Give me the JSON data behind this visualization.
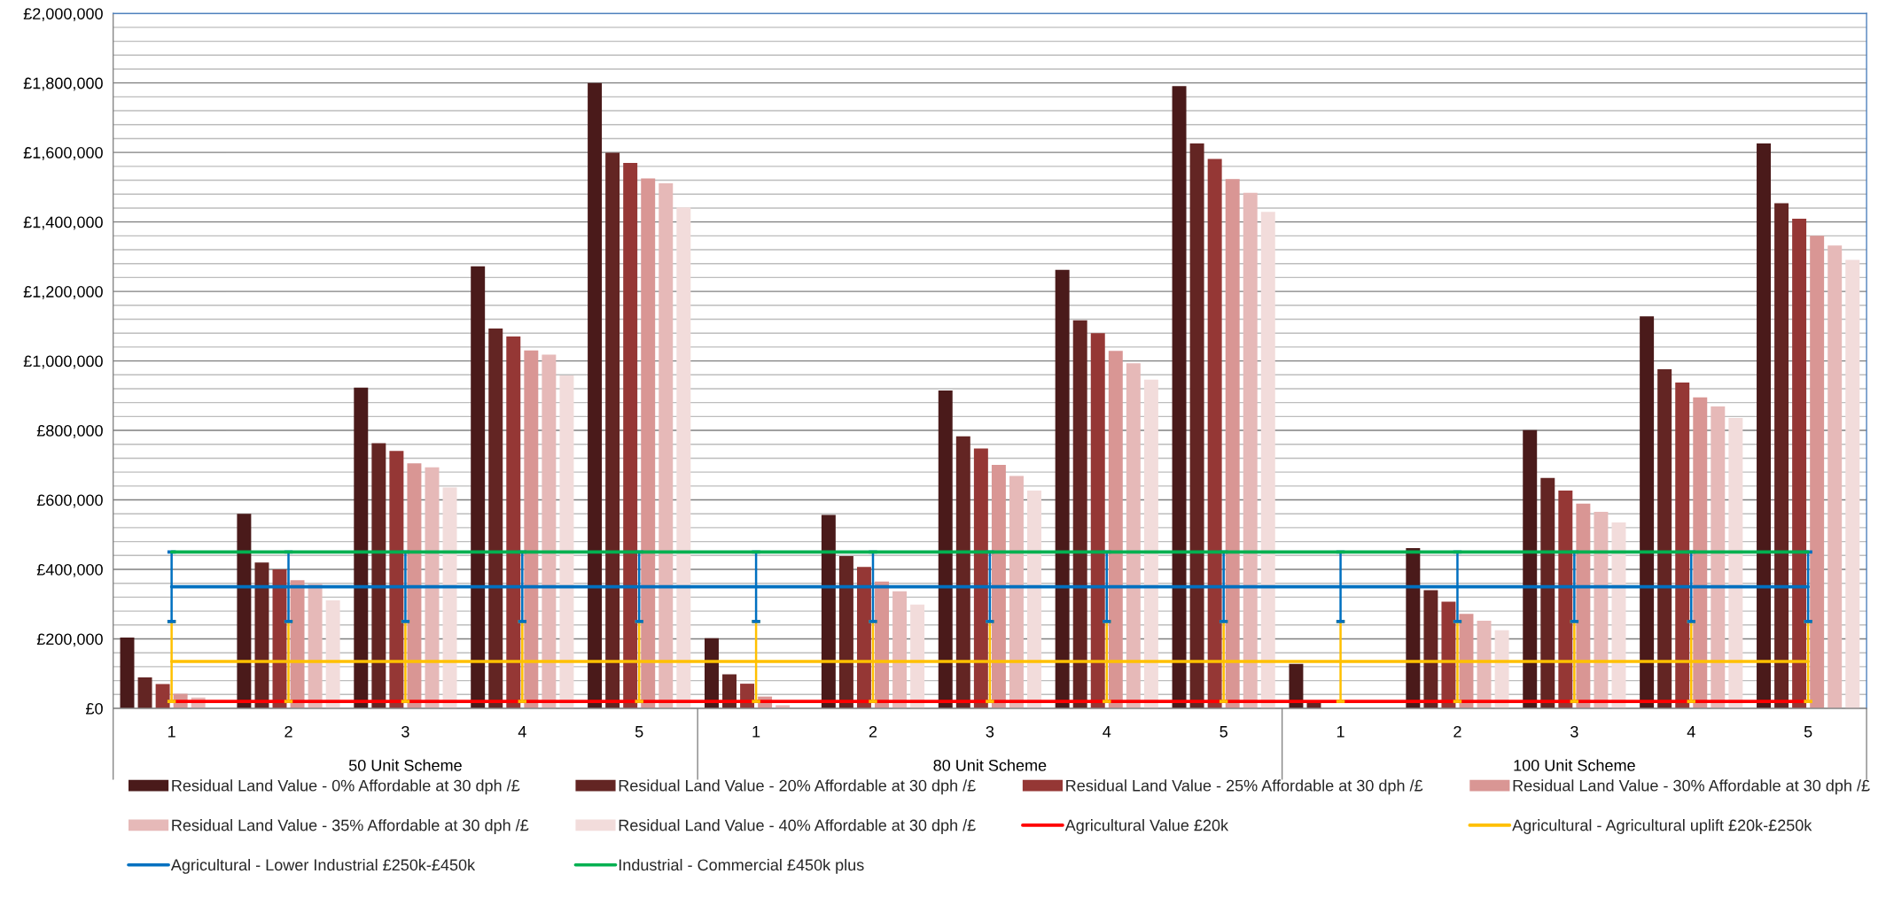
{
  "chart_data": {
    "type": "bar",
    "categories": [
      "1",
      "2",
      "3",
      "4",
      "5",
      "1",
      "2",
      "3",
      "4",
      "5",
      "1",
      "2",
      "3",
      "4",
      "5"
    ],
    "annotations": [
      "50 Unit Scheme",
      "80 Unit Scheme",
      "100 Unit Scheme"
    ],
    "series": [
      {
        "name": "Residual Land Value - 0% Affordable at 30 dph /£",
        "color": "#4a1a1a",
        "values": [
          204000,
          560000,
          923000,
          1272000,
          1800000,
          202000,
          557000,
          915000,
          1262000,
          1791000,
          128000,
          461000,
          801000,
          1128000,
          1626000
        ]
      },
      {
        "name": "Residual Land Value - 20% Affordable at 30 dph /£",
        "color": "#632523",
        "values": [
          89000,
          420000,
          763000,
          1093000,
          1599000,
          98000,
          438000,
          783000,
          1117000,
          1626000,
          16000,
          340000,
          663000,
          976000,
          1454000
        ]
      },
      {
        "name": "Residual Land Value - 25% Affordable at 30 dph /£",
        "color": "#953735",
        "values": [
          70000,
          400000,
          741000,
          1070000,
          1570000,
          71000,
          407000,
          748000,
          1080000,
          1581000,
          null,
          307000,
          627000,
          938000,
          1409000
        ]
      },
      {
        "name": "Residual Land Value - 30% Affordable at 30 dph /£",
        "color": "#d99694",
        "values": [
          42000,
          369000,
          705000,
          1030000,
          1525000,
          34000,
          365000,
          701000,
          1029000,
          1523000,
          null,
          272000,
          589000,
          895000,
          1360000
        ]
      },
      {
        "name": "Residual Land Value - 35% Affordable at 30 dph /£",
        "color": "#e6b9b8",
        "values": [
          31000,
          358000,
          694000,
          1018000,
          1511000,
          9000,
          337000,
          669000,
          993000,
          1484000,
          null,
          252000,
          566000,
          869000,
          1332000
        ]
      },
      {
        "name": "Residual Land Value - 40% Affordable at 30 dph /£",
        "color": "#f2dcdb",
        "values": [
          null,
          311000,
          636000,
          958000,
          1442000,
          null,
          299000,
          627000,
          946000,
          1429000,
          null,
          225000,
          535000,
          836000,
          1291000
        ]
      },
      {
        "name": "Agricultural Value £20k",
        "type": "line",
        "color": "#ff0000",
        "values": [
          20000,
          20000,
          20000,
          20000,
          20000,
          20000,
          20000,
          20000,
          20000,
          20000,
          20000,
          20000,
          20000,
          20000,
          20000
        ]
      },
      {
        "name": "Agricultural - Agricultural uplift £20k-£250k",
        "type": "line",
        "color": "#ffc000",
        "values": [
          135000,
          135000,
          135000,
          135000,
          135000,
          135000,
          135000,
          135000,
          135000,
          135000,
          135000,
          135000,
          135000,
          135000,
          135000
        ],
        "errors": [
          115000,
          115000,
          115000,
          115000,
          115000,
          115000,
          115000,
          115000,
          115000,
          115000,
          115000,
          115000,
          115000,
          115000,
          115000
        ]
      },
      {
        "name": "Agricultural - Lower Industrial £250k-£450k",
        "type": "line",
        "color": "#0070c0",
        "values": [
          350000,
          350000,
          350000,
          350000,
          350000,
          350000,
          350000,
          350000,
          350000,
          350000,
          350000,
          350000,
          350000,
          350000,
          350000
        ],
        "errors": [
          100000,
          100000,
          100000,
          100000,
          100000,
          100000,
          100000,
          100000,
          100000,
          100000,
          100000,
          100000,
          100000,
          100000,
          100000
        ]
      },
      {
        "name": "Industrial - Commercial £450k plus",
        "type": "line",
        "color": "#00b050",
        "values": [
          450000,
          450000,
          450000,
          450000,
          450000,
          450000,
          450000,
          450000,
          450000,
          450000,
          450000,
          450000,
          450000,
          450000,
          450000
        ]
      }
    ],
    "ylim": [
      0,
      2000000
    ],
    "yticks": [
      {
        "value": 0,
        "label": "£0"
      },
      {
        "value": 40000,
        "label": null
      },
      {
        "value": 80000,
        "label": null
      },
      {
        "value": 120000,
        "label": null
      },
      {
        "value": 160000,
        "label": null
      },
      {
        "value": 200000,
        "label": "£200,000"
      },
      {
        "value": 240000,
        "label": null
      },
      {
        "value": 280000,
        "label": null
      },
      {
        "value": 320000,
        "label": null
      },
      {
        "value": 360000,
        "label": null
      },
      {
        "value": 400000,
        "label": "£400,000"
      },
      {
        "value": 440000,
        "label": null
      },
      {
        "value": 480000,
        "label": null
      },
      {
        "value": 520000,
        "label": null
      },
      {
        "value": 560000,
        "label": null
      },
      {
        "value": 600000,
        "label": "£600,000"
      },
      {
        "value": 640000,
        "label": null
      },
      {
        "value": 680000,
        "label": null
      },
      {
        "value": 720000,
        "label": null
      },
      {
        "value": 760000,
        "label": null
      },
      {
        "value": 800000,
        "label": "£800,000"
      },
      {
        "value": 840000,
        "label": null
      },
      {
        "value": 880000,
        "label": null
      },
      {
        "value": 920000,
        "label": null
      },
      {
        "value": 960000,
        "label": null
      },
      {
        "value": 1000000,
        "label": "£1,000,000"
      },
      {
        "value": 1040000,
        "label": null
      },
      {
        "value": 1080000,
        "label": null
      },
      {
        "value": 1120000,
        "label": null
      },
      {
        "value": 1160000,
        "label": null
      },
      {
        "value": 1200000,
        "label": "£1,200,000"
      },
      {
        "value": 1240000,
        "label": null
      },
      {
        "value": 1280000,
        "label": null
      },
      {
        "value": 1320000,
        "label": null
      },
      {
        "value": 1360000,
        "label": null
      },
      {
        "value": 1400000,
        "label": "£1,400,000"
      },
      {
        "value": 1440000,
        "label": null
      },
      {
        "value": 1480000,
        "label": null
      },
      {
        "value": 1520000,
        "label": null
      },
      {
        "value": 1560000,
        "label": null
      },
      {
        "value": 1600000,
        "label": "£1,600,000"
      },
      {
        "value": 1640000,
        "label": null
      },
      {
        "value": 1680000,
        "label": null
      },
      {
        "value": 1720000,
        "label": null
      },
      {
        "value": 1760000,
        "label": null
      },
      {
        "value": 1800000,
        "label": "£1,800,000"
      },
      {
        "value": 1840000,
        "label": null
      },
      {
        "value": 1880000,
        "label": null
      },
      {
        "value": 1920000,
        "label": null
      },
      {
        "value": 1960000,
        "label": null
      },
      {
        "value": 2000000,
        "label": "£2,000,000"
      }
    ],
    "grid": "y",
    "legend": "bottom"
  }
}
